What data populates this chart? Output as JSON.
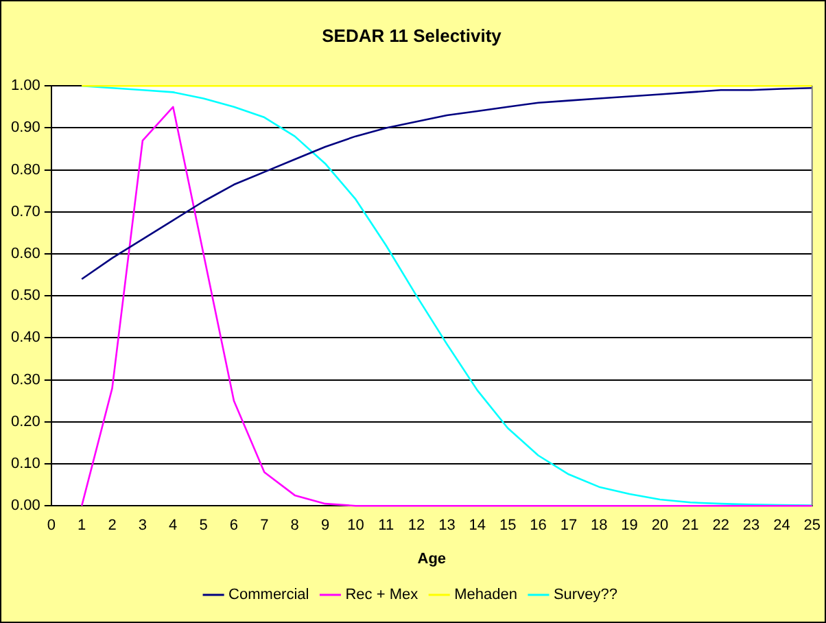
{
  "chart_data": {
    "type": "line",
    "title": "SEDAR 11 Selectivity",
    "xlabel": "Age",
    "x": [
      1,
      2,
      3,
      4,
      5,
      6,
      7,
      8,
      9,
      10,
      11,
      12,
      13,
      14,
      15,
      16,
      17,
      18,
      19,
      20,
      21,
      22,
      23,
      24,
      25
    ],
    "series": [
      {
        "name": "Commercial",
        "color": "#000080",
        "values": [
          0.54,
          0.59,
          0.635,
          0.68,
          0.725,
          0.765,
          0.795,
          0.825,
          0.855,
          0.88,
          0.9,
          0.915,
          0.93,
          0.94,
          0.95,
          0.96,
          0.965,
          0.97,
          0.975,
          0.98,
          0.985,
          0.99,
          0.99,
          0.993,
          0.995
        ]
      },
      {
        "name": "Rec + Mex",
        "color": "#ff00ff",
        "values": [
          0.0,
          0.28,
          0.87,
          0.95,
          0.6,
          0.25,
          0.08,
          0.025,
          0.005,
          0,
          0,
          0,
          0,
          0,
          0,
          0,
          0,
          0,
          0,
          0,
          0,
          0,
          0,
          0,
          0
        ]
      },
      {
        "name": "Mehaden",
        "color": "#ffff00",
        "values": [
          1,
          1,
          1,
          1,
          1,
          1,
          1,
          1,
          1,
          1,
          1,
          1,
          1,
          1,
          1,
          1,
          1,
          1,
          1,
          1,
          1,
          1,
          1,
          1,
          1
        ]
      },
      {
        "name": "Survey??",
        "color": "#00ffff",
        "values": [
          1.0,
          0.995,
          0.99,
          0.985,
          0.97,
          0.95,
          0.925,
          0.88,
          0.815,
          0.73,
          0.62,
          0.5,
          0.385,
          0.275,
          0.185,
          0.12,
          0.075,
          0.045,
          0.028,
          0.015,
          0.008,
          0.005,
          0.003,
          0.002,
          0.001
        ]
      }
    ],
    "xlim": [
      0,
      25
    ],
    "xticks": [
      0,
      1,
      2,
      3,
      4,
      5,
      6,
      7,
      8,
      9,
      10,
      11,
      12,
      13,
      14,
      15,
      16,
      17,
      18,
      19,
      20,
      21,
      22,
      23,
      24,
      25
    ],
    "ylim": [
      0,
      1
    ],
    "yticks": [
      {
        "value": 0,
        "label": "0.00"
      },
      {
        "value": 0.1,
        "label": "0.10"
      },
      {
        "value": 0.2,
        "label": "0.20"
      },
      {
        "value": 0.3,
        "label": "0.30"
      },
      {
        "value": 0.4,
        "label": "0.40"
      },
      {
        "value": 0.5,
        "label": "0.50"
      },
      {
        "value": 0.6,
        "label": "0.60"
      },
      {
        "value": 0.7,
        "label": "0.70"
      },
      {
        "value": 0.8,
        "label": "0.80"
      },
      {
        "value": 0.9,
        "label": "0.90"
      },
      {
        "value": 1,
        "label": "1.00"
      }
    ],
    "grid": "y",
    "legend": "bottom",
    "marker": "none",
    "line_style": "solid"
  }
}
